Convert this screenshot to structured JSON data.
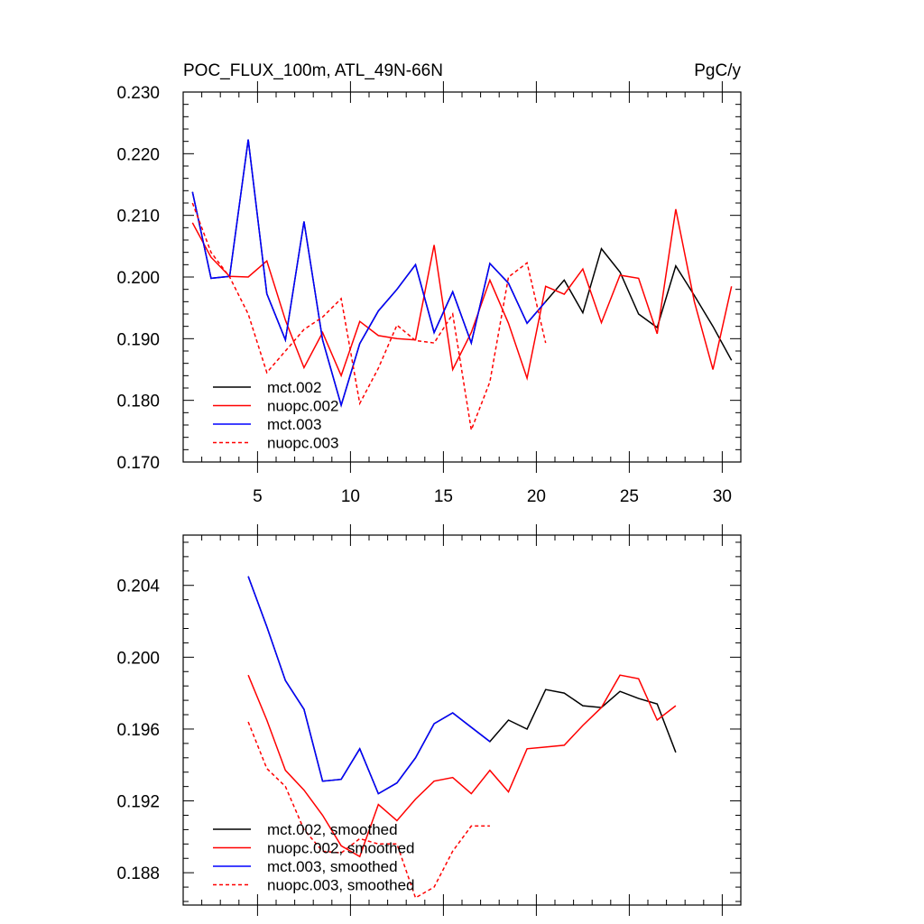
{
  "chart_data": [
    {
      "type": "line",
      "title": "POC_FLUX_100m, ATL_49N-66N",
      "units": "PgC/y",
      "xlim": [
        1,
        31
      ],
      "ylim": [
        0.17,
        0.23
      ],
      "x_ticks": [
        5,
        10,
        15,
        20,
        25,
        30
      ],
      "x_tick_labels": [
        "5",
        "10",
        "15",
        "20",
        "25",
        "30"
      ],
      "y_ticks": [
        0.17,
        0.18,
        0.19,
        0.2,
        0.21,
        0.22,
        0.23
      ],
      "y_tick_labels": [
        "0.170",
        "0.180",
        "0.190",
        "0.200",
        "0.210",
        "0.220",
        "0.230"
      ],
      "legend_position": "bottom-left",
      "series": [
        {
          "name": "mct.002",
          "color": "#000000",
          "dash": "solid",
          "x": [
            1.5,
            2.5,
            3.5,
            4.5,
            5.5,
            6.5,
            7.5,
            8.5,
            9.5,
            10.5,
            11.5,
            12.5,
            13.5,
            14.5,
            15.5,
            16.5,
            17.5,
            18.5,
            19.5,
            20.5,
            21.5,
            22.5,
            23.5,
            24.5,
            25.5,
            26.5,
            27.5,
            28.5,
            29.5,
            30.5
          ],
          "values": [
            0.2138,
            0.1998,
            0.2001,
            0.2223,
            0.1973,
            0.1898,
            0.209,
            0.1898,
            0.1792,
            0.1892,
            0.1945,
            0.198,
            0.202,
            0.191,
            0.1976,
            0.1893,
            0.2022,
            0.199,
            0.1925,
            0.196,
            0.1995,
            0.1942,
            0.2046,
            0.2008,
            0.194,
            0.1918,
            0.2018,
            0.197,
            0.192,
            0.1865
          ]
        },
        {
          "name": "nuopc.002",
          "color": "#ff0000",
          "dash": "solid",
          "x": [
            1.5,
            2.5,
            3.5,
            4.5,
            5.5,
            6.5,
            7.5,
            8.5,
            9.5,
            10.5,
            11.5,
            12.5,
            13.5,
            14.5,
            15.5,
            16.5,
            17.5,
            18.5,
            19.5,
            20.5,
            21.5,
            22.5,
            23.5,
            24.5,
            25.5,
            26.5,
            27.5,
            28.5,
            29.5,
            30.5
          ],
          "values": [
            0.2088,
            0.2032,
            0.2001,
            0.2,
            0.2026,
            0.193,
            0.1853,
            0.191,
            0.184,
            0.1928,
            0.1905,
            0.19,
            0.1898,
            0.2052,
            0.185,
            0.191,
            0.1995,
            0.1925,
            0.1836,
            0.1985,
            0.1972,
            0.2013,
            0.1926,
            0.2003,
            0.1998,
            0.1908,
            0.211,
            0.196,
            0.185,
            0.1985
          ]
        },
        {
          "name": "mct.003",
          "color": "#0000ff",
          "dash": "solid",
          "x": [
            1.5,
            2.5,
            3.5,
            4.5,
            5.5,
            6.5,
            7.5,
            8.5,
            9.5,
            10.5,
            11.5,
            12.5,
            13.5,
            14.5,
            15.5,
            16.5,
            17.5,
            18.5,
            19.5,
            20.5
          ],
          "values": [
            0.2138,
            0.1998,
            0.2001,
            0.2223,
            0.1973,
            0.1898,
            0.209,
            0.1898,
            0.1792,
            0.1892,
            0.1945,
            0.198,
            0.202,
            0.191,
            0.1976,
            0.1893,
            0.2022,
            0.199,
            0.1925,
            0.196
          ]
        },
        {
          "name": "nuopc.003",
          "color": "#ff0000",
          "dash": "dashed",
          "x": [
            1.5,
            2.5,
            3.5,
            4.5,
            5.5,
            6.5,
            7.5,
            8.5,
            9.5,
            10.5,
            11.5,
            12.5,
            13.5,
            14.5,
            15.5,
            16.5,
            17.5,
            18.5,
            19.5,
            20.5
          ],
          "values": [
            0.212,
            0.204,
            0.2,
            0.194,
            0.1845,
            0.188,
            0.1915,
            0.1935,
            0.1965,
            0.1795,
            0.1852,
            0.1922,
            0.1897,
            0.1893,
            0.194,
            0.1752,
            0.183,
            0.2,
            0.2023,
            0.1893
          ]
        }
      ]
    },
    {
      "type": "line",
      "title": "",
      "xlim": [
        1,
        31
      ],
      "ylim": [
        0.1862,
        0.2068
      ],
      "x_ticks": [
        5,
        10,
        15,
        20,
        25,
        30
      ],
      "x_tick_labels": [
        "",
        "",
        "",
        "",
        "",
        ""
      ],
      "y_ticks": [
        0.188,
        0.192,
        0.196,
        0.2,
        0.204
      ],
      "y_tick_labels": [
        "0.188",
        "0.192",
        "0.196",
        "0.200",
        "0.204"
      ],
      "legend_position": "bottom-left",
      "series": [
        {
          "name": "mct.002, smoothed",
          "color": "#000000",
          "dash": "solid",
          "x": [
            4.5,
            5.5,
            6.5,
            7.5,
            8.5,
            9.5,
            10.5,
            11.5,
            12.5,
            13.5,
            14.5,
            15.5,
            16.5,
            17.5,
            18.5,
            19.5,
            20.5,
            21.5,
            22.5,
            23.5,
            24.5,
            25.5,
            26.5,
            27.5
          ],
          "values": [
            0.2045,
            0.2017,
            0.1987,
            0.1971,
            0.1931,
            0.1932,
            0.1949,
            0.1924,
            0.193,
            0.1944,
            0.1963,
            0.1969,
            0.1961,
            0.1953,
            0.1965,
            0.196,
            0.1982,
            0.198,
            0.1973,
            0.1972,
            0.1981,
            0.1977,
            0.1974,
            0.1947
          ]
        },
        {
          "name": "nuopc.002, smoothed",
          "color": "#ff0000",
          "dash": "solid",
          "x": [
            4.5,
            5.5,
            6.5,
            7.5,
            8.5,
            9.5,
            10.5,
            11.5,
            12.5,
            13.5,
            14.5,
            15.5,
            16.5,
            17.5,
            18.5,
            19.5,
            20.5,
            21.5,
            22.5,
            23.5,
            24.5,
            25.5,
            26.5,
            27.5
          ],
          "values": [
            0.199,
            0.1965,
            0.1937,
            0.1926,
            0.1912,
            0.1895,
            0.1889,
            0.1918,
            0.1909,
            0.1921,
            0.1931,
            0.1933,
            0.1924,
            0.1937,
            0.1925,
            0.1949,
            0.195,
            0.1951,
            0.1962,
            0.1972,
            0.199,
            0.1988,
            0.1965,
            0.1973
          ]
        },
        {
          "name": "mct.003, smoothed",
          "color": "#0000ff",
          "dash": "solid",
          "x": [
            4.5,
            5.5,
            6.5,
            7.5,
            8.5,
            9.5,
            10.5,
            11.5,
            12.5,
            13.5,
            14.5,
            15.5,
            16.5,
            17.5
          ],
          "values": [
            0.2045,
            0.2017,
            0.1987,
            0.1971,
            0.1931,
            0.1932,
            0.1949,
            0.1924,
            0.193,
            0.1944,
            0.1963,
            0.1969,
            0.1961,
            0.1953
          ]
        },
        {
          "name": "nuopc.003, smoothed",
          "color": "#ff0000",
          "dash": "dashed",
          "x": [
            4.5,
            5.5,
            6.5,
            7.5,
            8.5,
            9.5,
            10.5,
            11.5,
            12.5,
            13.5,
            14.5,
            15.5,
            16.5,
            17.5
          ],
          "values": [
            0.1964,
            0.1938,
            0.1928,
            0.1904,
            0.1892,
            0.1891,
            0.1899,
            0.1896,
            0.1896,
            0.1866,
            0.1872,
            0.1892,
            0.1906,
            0.1906
          ]
        }
      ]
    }
  ]
}
